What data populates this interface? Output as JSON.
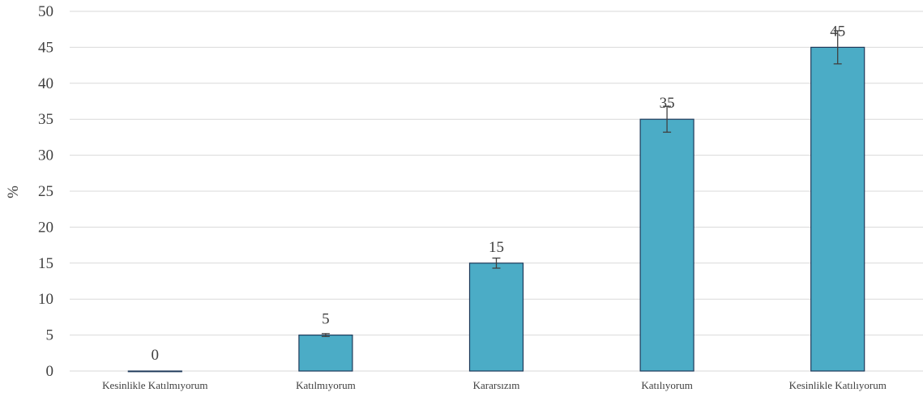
{
  "chart_data": {
    "type": "bar",
    "title": "",
    "xlabel": "",
    "ylabel": "%",
    "ylim": [
      0,
      50
    ],
    "yticks": [
      0,
      5,
      10,
      15,
      20,
      25,
      30,
      35,
      40,
      45,
      50
    ],
    "grid": true,
    "legend": "none",
    "categories": [
      "Kesinlikle Katılmıyorum",
      "Katılmıyorum",
      "Kararsızım",
      "Katılıyorum",
      "Kesinlikle Katılıyorum"
    ],
    "values": [
      0,
      5,
      15,
      35,
      45
    ],
    "data_labels": [
      "0",
      "5",
      "15",
      "35",
      "45"
    ],
    "error": [
      0,
      0.2,
      0.7,
      1.8,
      2.3
    ],
    "colors": {
      "bar_fill": "#4bacc6",
      "bar_edge": "#1f3a5a",
      "grid": "#d9d9d9",
      "text": "#404040"
    }
  }
}
